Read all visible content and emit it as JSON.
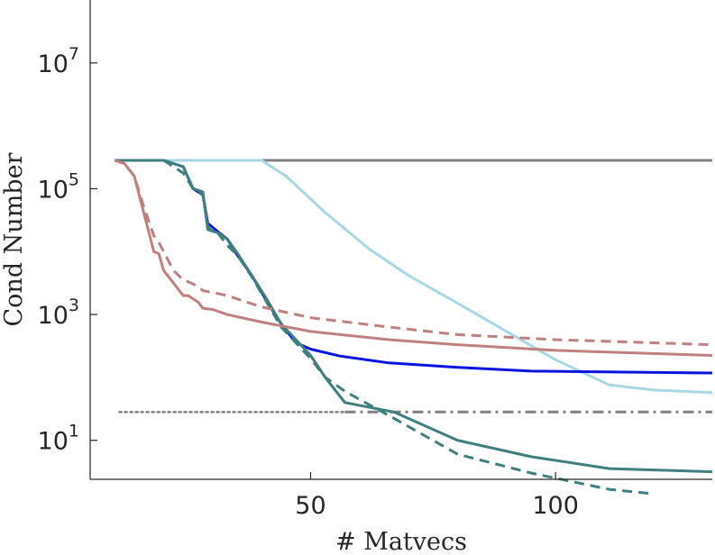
{
  "chart_data": {
    "type": "line",
    "title": "",
    "xlabel": "# Matvecs",
    "ylabel": "Cond Number",
    "yscale": "log",
    "xlim": [
      5,
      132
    ],
    "ylim_log10": [
      0.38,
      8.0
    ],
    "grid": false,
    "legend": "none",
    "x_ticks": [
      {
        "value": 50,
        "label": "50"
      },
      {
        "value": 100,
        "label": "100"
      }
    ],
    "y_ticks": [
      {
        "log10": 1,
        "base": "10",
        "exp": "1"
      },
      {
        "log10": 3,
        "base": "10",
        "exp": "3"
      },
      {
        "log10": 5,
        "base": "10",
        "exp": "5"
      },
      {
        "log10": 7,
        "base": "10",
        "exp": "7"
      }
    ],
    "series": [
      {
        "name": "gray-flat",
        "color": "#808080",
        "dash": "solid",
        "x": [
          10,
          132
        ],
        "log10y": [
          5.45,
          5.45
        ]
      },
      {
        "name": "gray-dotted",
        "color": "#888888",
        "dash": "dotted",
        "x": [
          11,
          57
        ],
        "log10y": [
          1.45,
          1.45
        ]
      },
      {
        "name": "gray-dashdot",
        "color": "#808080",
        "dash": "dashdot",
        "x": [
          57,
          132
        ],
        "log10y": [
          1.45,
          1.45
        ]
      },
      {
        "name": "light-blue",
        "color": "#a8d8e6",
        "dash": "solid",
        "x": [
          10,
          40,
          45,
          53,
          62,
          70,
          80,
          90,
          100,
          111,
          120,
          132
        ],
        "log10y": [
          5.45,
          5.45,
          5.2,
          4.62,
          4.04,
          3.62,
          3.18,
          2.73,
          2.28,
          1.88,
          1.8,
          1.76
        ]
      },
      {
        "name": "blue",
        "color": "#0a14e0",
        "dash": "solid",
        "x": [
          10,
          20,
          24,
          26,
          28,
          29,
          31,
          33,
          35,
          38,
          41,
          44,
          47,
          50,
          56,
          66,
          80,
          95,
          132
        ],
        "log10y": [
          5.45,
          5.45,
          5.35,
          5.0,
          4.9,
          4.45,
          4.32,
          4.2,
          3.95,
          3.62,
          3.22,
          2.85,
          2.55,
          2.45,
          2.34,
          2.23,
          2.16,
          2.1,
          2.07
        ]
      },
      {
        "name": "teal-solid",
        "color": "#3f7f7f",
        "dash": "solid",
        "x": [
          10,
          20,
          24,
          26,
          28,
          29,
          31,
          33,
          35,
          38,
          41,
          44,
          47,
          50,
          53,
          57,
          67,
          80,
          95,
          111,
          132
        ],
        "log10y": [
          5.45,
          5.45,
          5.35,
          5.0,
          4.95,
          4.35,
          4.3,
          4.2,
          3.98,
          3.62,
          3.25,
          2.85,
          2.6,
          2.35,
          2.0,
          1.6,
          1.45,
          1.0,
          0.74,
          0.55,
          0.5
        ]
      },
      {
        "name": "teal-dashed",
        "color": "#3f7f7f",
        "dash": "dashed",
        "x": [
          10,
          20,
          24,
          26,
          28,
          29,
          31,
          33,
          35,
          38,
          41,
          44,
          47,
          50,
          53,
          57,
          67,
          80,
          95,
          111,
          120
        ],
        "log10y": [
          5.45,
          5.45,
          5.25,
          5.0,
          4.9,
          4.4,
          4.3,
          4.1,
          3.95,
          3.6,
          3.2,
          2.8,
          2.55,
          2.3,
          2.0,
          1.78,
          1.35,
          0.78,
          0.48,
          0.22,
          0.15
        ]
      },
      {
        "name": "rose-solid",
        "color": "#c08080",
        "dash": "solid",
        "x": [
          10,
          12,
          14,
          16,
          18,
          19,
          20,
          22,
          24,
          25,
          27,
          28,
          30,
          33,
          40,
          50,
          66,
          80,
          100,
          132
        ],
        "log10y": [
          5.45,
          5.4,
          5.2,
          4.6,
          4.0,
          3.97,
          3.7,
          3.5,
          3.3,
          3.3,
          3.2,
          3.1,
          3.08,
          3.0,
          2.88,
          2.73,
          2.6,
          2.52,
          2.43,
          2.35
        ]
      },
      {
        "name": "rose-dashed",
        "color": "#c08080",
        "dash": "dashed",
        "x": [
          10,
          12,
          14,
          16,
          18,
          19,
          20,
          22,
          24,
          25,
          27,
          28,
          30,
          33,
          40,
          50,
          66,
          80,
          100,
          132
        ],
        "log10y": [
          5.45,
          5.4,
          5.2,
          4.7,
          4.25,
          4.15,
          4.0,
          3.7,
          3.55,
          3.52,
          3.45,
          3.38,
          3.35,
          3.3,
          3.12,
          2.95,
          2.8,
          2.68,
          2.6,
          2.52
        ]
      }
    ]
  }
}
